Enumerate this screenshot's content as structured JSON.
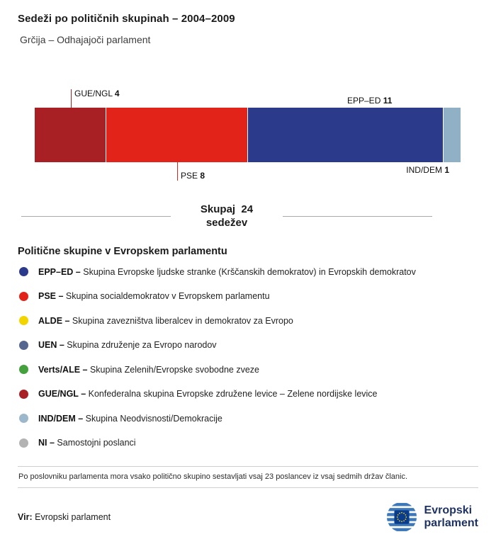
{
  "header": {
    "title": "Sedeži po političnih skupinah – 2004–2009",
    "subtitle": "Grčija – Odhajajoči parlament"
  },
  "chart_data": {
    "type": "bar",
    "variant": "stacked-horizontal",
    "title": "Sedeži po političnih skupinah – 2004–2009",
    "total_seats": 24,
    "total_label": "Skupaj  24",
    "total_sublabel": "sedežev",
    "segments": [
      {
        "name": "GUE/NGL",
        "value": 4,
        "color": "#a92024",
        "label_position": "top"
      },
      {
        "name": "PSE",
        "value": 8,
        "color": "#e2231a",
        "label_position": "bottom"
      },
      {
        "name": "EPP–ED",
        "value": 11,
        "color": "#2c3a8c",
        "label_position": "top"
      },
      {
        "name": "IND/DEM",
        "value": 1,
        "color": "#8fb0c5",
        "label_position": "bottom"
      }
    ]
  },
  "legend": {
    "title": "Politične skupine v Evropskem parlamentu",
    "items": [
      {
        "abbr": "EPP–ED –",
        "desc": "Skupina Evropske ljudske stranke (Krščanskih demokratov) in Evropskih demokratov",
        "color": "#2c3a8c"
      },
      {
        "abbr": "PSE –",
        "desc": "Skupina socialdemokratov v Evropskem parlamentu",
        "color": "#e2231a"
      },
      {
        "abbr": "ALDE –",
        "desc": "Skupina zavezništva liberalcev in demokratov za Evropo",
        "color": "#f2d500"
      },
      {
        "abbr": "UEN –",
        "desc": "Skupina združenje za Evropo narodov",
        "color": "#55678f"
      },
      {
        "abbr": "Verts/ALE –",
        "desc": "Skupina Zelenih/Evropske svobodne zveze",
        "color": "#44a13d"
      },
      {
        "abbr": "GUE/NGL –",
        "desc": "Konfederalna skupina Evropske združene levice – Zelene nordijske levice",
        "color": "#a92024"
      },
      {
        "abbr": "IND/DEM –",
        "desc": "Skupina Neodvisnosti/Demokracije",
        "color": "#9db8cb"
      },
      {
        "abbr": "NI –",
        "desc": "Samostojni poslanci",
        "color": "#b3b3b3"
      }
    ]
  },
  "footer": {
    "note": "Po poslovniku parlamenta mora vsako politično skupino sestavljati vsaj 23 poslancev iz vsaj sedmih držav članic.",
    "source_label": "Vir:",
    "source_value": "Evropski parlament",
    "logo_line1": "Evropski",
    "logo_line2": "parlament"
  }
}
